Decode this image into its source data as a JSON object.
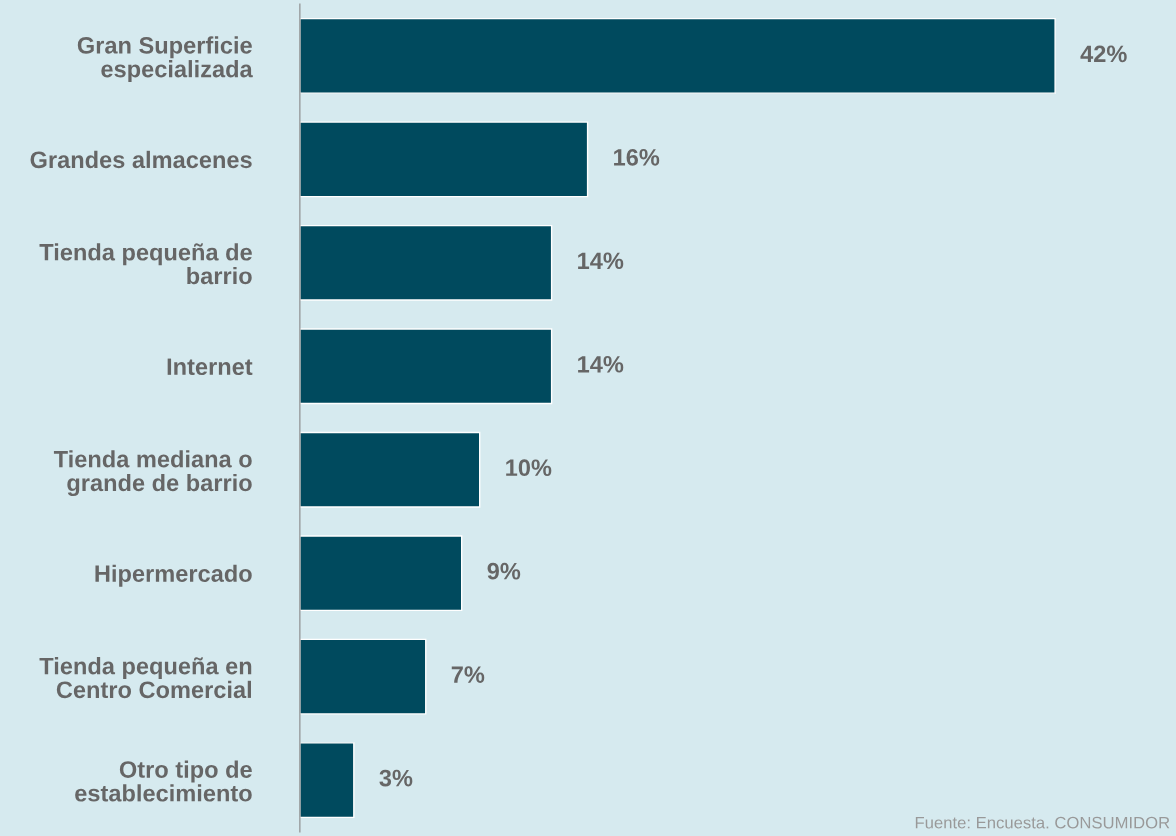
{
  "chart_data": {
    "type": "bar",
    "orientation": "horizontal",
    "categories": [
      "Gran Superficie\nespecializada",
      "Grandes almacenes",
      "Tienda pequeña de\nbarrio",
      "Internet",
      "Tienda mediana o\ngrande de barrio",
      "Hipermercado",
      "Tienda pequeña en\nCentro Comercial",
      "Otro tipo de\nestablecimiento"
    ],
    "values": [
      42,
      16,
      14,
      14,
      10,
      9,
      7,
      3
    ],
    "value_labels": [
      "42%",
      "16%",
      "14%",
      "14%",
      "10%",
      "9%",
      "7%",
      "3%"
    ],
    "color": "#004a5e",
    "annotations": [
      "Fuente: Encuesta. CONSUMIDOR"
    ]
  }
}
